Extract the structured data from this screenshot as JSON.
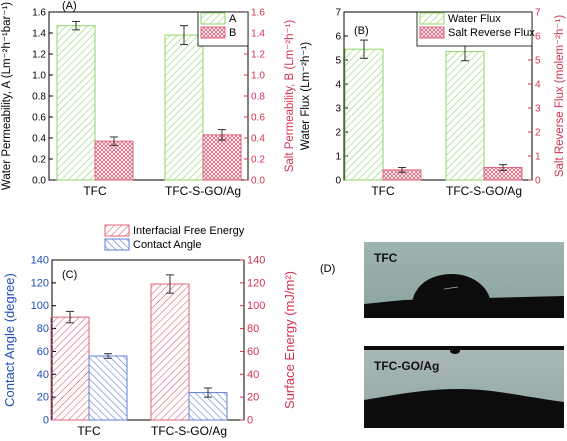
{
  "chart_data": [
    {
      "panel": "(A)",
      "type": "bar",
      "categories": [
        "TFC",
        "TFC-S-GO/Ag"
      ],
      "ylabel_left": "Water Permeability, A (Lm⁻²h⁻¹bar⁻¹)",
      "ylabel_right": "Salt Permeability, B (Lm⁻²h⁻¹)",
      "ylim_left": [
        0,
        1.6
      ],
      "ylim_right": [
        0,
        1.6
      ],
      "yticks_left": [
        "0.0",
        "0.2",
        "0.4",
        "0.6",
        "0.8",
        "1.0",
        "1.2",
        "1.4",
        "1.6"
      ],
      "yticks_right": [
        "0.0",
        "0.2",
        "0.4",
        "0.6",
        "0.8",
        "1.0",
        "1.2",
        "1.4",
        "1.6"
      ],
      "legend_position": "top-right",
      "series": [
        {
          "name": "A",
          "axis": "left",
          "values": [
            1.47,
            1.38
          ],
          "errors": [
            0.04,
            0.09
          ],
          "color": "#8fd66a",
          "hatch": "green-diagonal"
        },
        {
          "name": "B",
          "axis": "right",
          "values": [
            0.37,
            0.43
          ],
          "errors": [
            0.04,
            0.05
          ],
          "color": "#e0607a",
          "hatch": "red-crosshatch"
        }
      ]
    },
    {
      "panel": "(B)",
      "type": "bar",
      "categories": [
        "TFC",
        "TFC-S-GO/Ag"
      ],
      "ylabel_left": "Water Flux (Lm⁻²h⁻¹)",
      "ylabel_right": "Salt Reverse Flux (molem⁻²h⁻¹)",
      "ylim_left": [
        0,
        7
      ],
      "ylim_right": [
        0,
        7
      ],
      "yticks_left": [
        "0",
        "1",
        "2",
        "3",
        "4",
        "5",
        "6",
        "7"
      ],
      "yticks_right": [
        "0",
        "1",
        "2",
        "3",
        "4",
        "5",
        "6",
        "7"
      ],
      "legend_position": "top-right",
      "series": [
        {
          "name": "Water Flux",
          "axis": "left",
          "values": [
            5.45,
            5.35
          ],
          "errors": [
            0.38,
            0.38
          ],
          "color": "#8fd66a",
          "hatch": "green-diagonal"
        },
        {
          "name": "Salt Reverse Flux",
          "axis": "right",
          "values": [
            0.42,
            0.52
          ],
          "errors": [
            0.1,
            0.12
          ],
          "color": "#e0607a",
          "hatch": "red-crosshatch"
        }
      ]
    },
    {
      "panel": "(C)",
      "type": "bar",
      "categories": [
        "TFC",
        "TFC-S-GO/Ag"
      ],
      "ylabel_left": "Contact Angle (degree)",
      "ylabel_right": "Surface Energy (mJ/m²)",
      "ylim_left": [
        0,
        140
      ],
      "ylim_right": [
        0,
        140
      ],
      "yticks_left": [
        "0",
        "20",
        "40",
        "60",
        "80",
        "100",
        "120",
        "140"
      ],
      "yticks_right": [
        "0",
        "20",
        "40",
        "60",
        "80",
        "100",
        "120",
        "140"
      ],
      "legend_position": "top",
      "series": [
        {
          "name": "Interfacial Free Energy",
          "axis": "right",
          "values": [
            90,
            119
          ],
          "errors": [
            5,
            8
          ],
          "color": "#e0607a",
          "hatch": "red-diagonal"
        },
        {
          "name": "Contact Angle",
          "axis": "left",
          "values": [
            56,
            24
          ],
          "errors": [
            2,
            4
          ],
          "color": "#5b7fd4",
          "hatch": "blue-diagonal"
        }
      ]
    }
  ],
  "panel_d": {
    "label": "(D)",
    "images": [
      {
        "caption": "TFC"
      },
      {
        "caption": "TFC-GO/Ag"
      }
    ]
  },
  "colors": {
    "left_axis_c": "#1f4fb5",
    "right_axis": "#d4324f"
  }
}
